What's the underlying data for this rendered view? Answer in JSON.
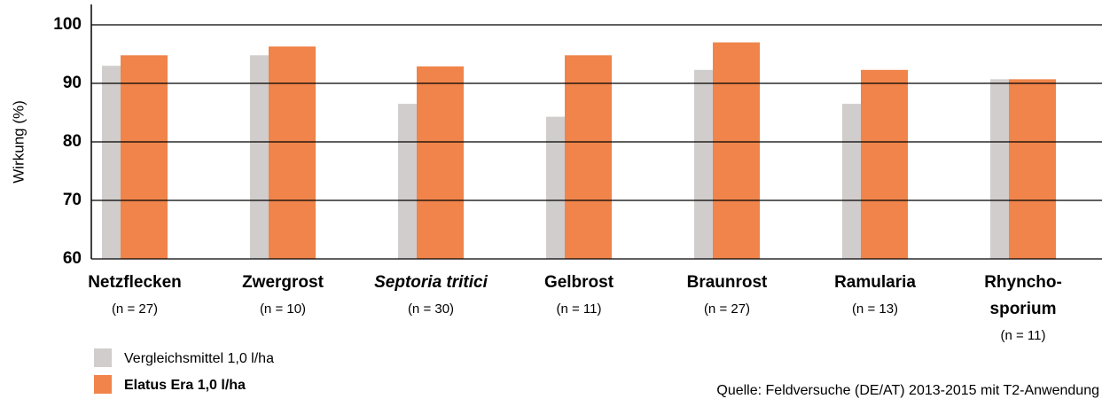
{
  "chart_data": {
    "type": "bar",
    "y_label": "Wirkung (%)",
    "categories": [
      "Netzflecken",
      "Zwergrost",
      "Septoria tritici",
      "Gelbrost",
      "Braunrost",
      "Ramularia",
      "Rhyncho-sporium"
    ],
    "sample_sizes": [
      "(n = 27)",
      "(n = 10)",
      "(n = 30)",
      "(n = 11)",
      "(n = 27)",
      "(n = 13)",
      "(n = 11)"
    ],
    "series": [
      {
        "name": "Vergleichsmittel 1,0 l/ha",
        "color": "#d0cdcc",
        "values": [
          93,
          94.8,
          86.5,
          84.3,
          92.3,
          86.5,
          90.7
        ]
      },
      {
        "name": "Elatus Era 1,0 l/ha",
        "color": "#f0844a",
        "values": [
          94.8,
          96.3,
          92.9,
          94.8,
          97,
          92.3,
          90.7
        ]
      }
    ],
    "ylim": [
      60,
      100
    ],
    "yticks": [
      60,
      70,
      80,
      90,
      100
    ],
    "grid": true,
    "source": "Quelle: Feldversuche (DE/AT) 2013-2015 mit T2-Anwendung"
  }
}
